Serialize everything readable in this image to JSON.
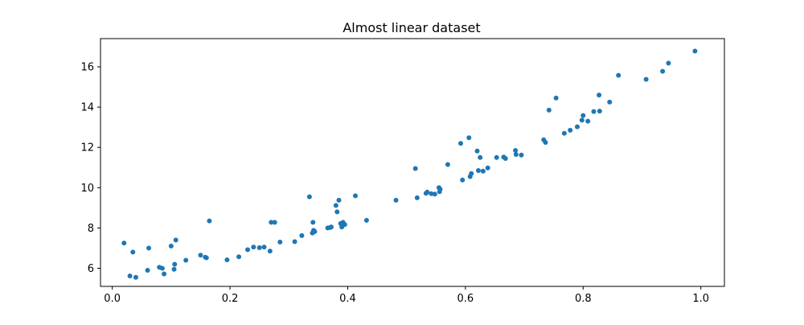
{
  "chart_data": {
    "type": "scatter",
    "title": "Almost linear dataset",
    "xlabel": "",
    "ylabel": "",
    "xlim": [
      -0.02,
      1.04
    ],
    "ylim": [
      5.1,
      17.4
    ],
    "xticks": [
      0.0,
      0.2,
      0.4,
      0.6,
      0.8,
      1.0
    ],
    "xtick_labels": [
      "0.0",
      "0.2",
      "0.4",
      "0.6",
      "0.8",
      "1.0"
    ],
    "yticks": [
      6,
      8,
      10,
      12,
      14,
      16
    ],
    "ytick_labels": [
      "6",
      "8",
      "10",
      "12",
      "14",
      "16"
    ],
    "grid": false,
    "marker_color": "#1f77b4",
    "series": [
      {
        "points": [
          [
            0.02,
            7.25
          ],
          [
            0.03,
            5.62
          ],
          [
            0.035,
            6.8
          ],
          [
            0.04,
            5.55
          ],
          [
            0.06,
            5.9
          ],
          [
            0.062,
            7.0
          ],
          [
            0.08,
            6.05
          ],
          [
            0.085,
            6.0
          ],
          [
            0.088,
            5.72
          ],
          [
            0.1,
            7.1
          ],
          [
            0.105,
            5.95
          ],
          [
            0.106,
            6.2
          ],
          [
            0.108,
            7.4
          ],
          [
            0.125,
            6.4
          ],
          [
            0.15,
            6.65
          ],
          [
            0.158,
            6.55
          ],
          [
            0.16,
            6.52
          ],
          [
            0.165,
            8.35
          ],
          [
            0.195,
            6.42
          ],
          [
            0.215,
            6.57
          ],
          [
            0.23,
            6.92
          ],
          [
            0.24,
            7.05
          ],
          [
            0.25,
            7.02
          ],
          [
            0.258,
            7.05
          ],
          [
            0.268,
            6.85
          ],
          [
            0.27,
            8.28
          ],
          [
            0.276,
            8.28
          ],
          [
            0.285,
            7.3
          ],
          [
            0.31,
            7.32
          ],
          [
            0.322,
            7.62
          ],
          [
            0.335,
            9.55
          ],
          [
            0.34,
            7.75
          ],
          [
            0.341,
            8.28
          ],
          [
            0.342,
            7.88
          ],
          [
            0.344,
            7.82
          ],
          [
            0.366,
            8.0
          ],
          [
            0.37,
            8.02
          ],
          [
            0.372,
            8.05
          ],
          [
            0.38,
            9.12
          ],
          [
            0.382,
            8.8
          ],
          [
            0.385,
            9.38
          ],
          [
            0.388,
            8.22
          ],
          [
            0.39,
            8.05
          ],
          [
            0.392,
            8.28
          ],
          [
            0.395,
            8.17
          ],
          [
            0.413,
            9.6
          ],
          [
            0.432,
            8.38
          ],
          [
            0.482,
            9.38
          ],
          [
            0.515,
            10.95
          ],
          [
            0.518,
            9.5
          ],
          [
            0.533,
            9.72
          ],
          [
            0.535,
            9.78
          ],
          [
            0.542,
            9.7
          ],
          [
            0.548,
            9.68
          ],
          [
            0.555,
            10.0
          ],
          [
            0.556,
            9.8
          ],
          [
            0.557,
            9.92
          ],
          [
            0.57,
            11.15
          ],
          [
            0.592,
            12.2
          ],
          [
            0.595,
            10.38
          ],
          [
            0.606,
            12.48
          ],
          [
            0.608,
            10.55
          ],
          [
            0.61,
            10.7
          ],
          [
            0.62,
            11.82
          ],
          [
            0.622,
            10.85
          ],
          [
            0.625,
            11.5
          ],
          [
            0.63,
            10.82
          ],
          [
            0.638,
            10.98
          ],
          [
            0.653,
            11.5
          ],
          [
            0.665,
            11.52
          ],
          [
            0.668,
            11.45
          ],
          [
            0.685,
            11.85
          ],
          [
            0.686,
            11.65
          ],
          [
            0.695,
            11.62
          ],
          [
            0.733,
            12.38
          ],
          [
            0.736,
            12.25
          ],
          [
            0.742,
            13.85
          ],
          [
            0.754,
            14.45
          ],
          [
            0.768,
            12.7
          ],
          [
            0.778,
            12.85
          ],
          [
            0.79,
            13.02
          ],
          [
            0.798,
            13.35
          ],
          [
            0.8,
            13.58
          ],
          [
            0.808,
            13.3
          ],
          [
            0.818,
            13.78
          ],
          [
            0.827,
            14.6
          ],
          [
            0.828,
            13.8
          ],
          [
            0.845,
            14.25
          ],
          [
            0.86,
            15.58
          ],
          [
            0.907,
            15.38
          ],
          [
            0.935,
            15.78
          ],
          [
            0.945,
            16.18
          ],
          [
            0.99,
            16.78
          ]
        ]
      }
    ]
  }
}
